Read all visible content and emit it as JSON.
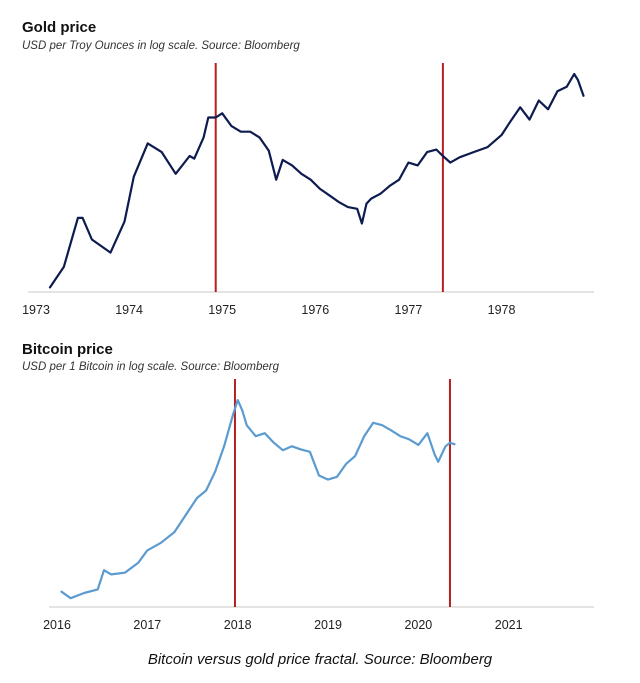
{
  "caption": "Bitcoin versus gold price fractal. Source: Bloomberg",
  "colors": {
    "gold_line": "#0d1b4f",
    "bitcoin_line": "#5b9bd0",
    "marker_line": "#b42020",
    "axis": "#c8c8c8"
  },
  "chart_data": [
    {
      "type": "line",
      "title": "Gold price",
      "subtitle": "USD per Troy Ounces in log scale. Source: Bloomberg",
      "xlabel": "",
      "ylabel": "",
      "y_scale": "log",
      "xlim": [
        1973.0,
        1978.95
      ],
      "ylim": [
        62,
        220
      ],
      "grid": false,
      "x_ticks": [
        "1973",
        "1974",
        "1975",
        "1976",
        "1977",
        "1978"
      ],
      "x_tick_values": [
        1973,
        1974,
        1975,
        1976,
        1977,
        1978
      ],
      "vertical_markers": [
        1974.93,
        1977.37
      ],
      "series": [
        {
          "name": "Gold price",
          "x": [
            1973.15,
            1973.3,
            1973.45,
            1973.5,
            1973.6,
            1973.8,
            1973.95,
            1974.05,
            1974.2,
            1974.35,
            1974.5,
            1974.65,
            1974.7,
            1974.8,
            1974.85,
            1974.93,
            1975.0,
            1975.1,
            1975.2,
            1975.3,
            1975.4,
            1975.5,
            1975.58,
            1975.65,
            1975.75,
            1975.85,
            1975.95,
            1976.05,
            1976.15,
            1976.25,
            1976.35,
            1976.45,
            1976.5,
            1976.55,
            1976.6,
            1976.7,
            1976.8,
            1976.9,
            1977.0,
            1977.1,
            1977.2,
            1977.3,
            1977.37,
            1977.45,
            1977.55,
            1977.7,
            1977.85,
            1978.0,
            1978.1,
            1978.2,
            1978.3,
            1978.4,
            1978.5,
            1978.6,
            1978.7,
            1978.78,
            1978.82,
            1978.88
          ],
          "y": [
            64,
            72,
            95,
            95,
            84,
            78,
            93,
            120,
            145,
            138,
            122,
            135,
            133,
            150,
            168,
            168,
            172,
            160,
            155,
            155,
            150,
            139,
            118,
            132,
            128,
            122,
            118,
            112,
            108,
            104,
            101,
            100,
            92,
            103,
            106,
            109,
            114,
            118,
            130,
            128,
            138,
            140,
            135,
            130,
            134,
            138,
            142,
            152,
            165,
            178,
            166,
            185,
            176,
            195,
            200,
            215,
            208,
            190
          ]
        }
      ]
    },
    {
      "type": "line",
      "title": "Bitcoin price",
      "subtitle": "USD per 1 Bitcoin in log scale. Source: Bloomberg",
      "xlabel": "",
      "ylabel": "",
      "y_scale": "log",
      "xlim": [
        2016.0,
        2021.9
      ],
      "ylim": [
        250,
        25000
      ],
      "grid": false,
      "x_ticks": [
        "2016",
        "2017",
        "2018",
        "2019",
        "2020",
        "2021"
      ],
      "x_tick_values": [
        2016,
        2017,
        2018,
        2019,
        2020,
        2021
      ],
      "vertical_markers": [
        2017.97,
        2020.35
      ],
      "series": [
        {
          "name": "Bitcoin price",
          "x": [
            2016.05,
            2016.15,
            2016.3,
            2016.45,
            2016.52,
            2016.6,
            2016.75,
            2016.9,
            2017.0,
            2017.15,
            2017.3,
            2017.45,
            2017.55,
            2017.65,
            2017.75,
            2017.85,
            2017.95,
            2018.0,
            2018.05,
            2018.1,
            2018.2,
            2018.3,
            2018.4,
            2018.5,
            2018.6,
            2018.7,
            2018.8,
            2018.9,
            2019.0,
            2019.1,
            2019.2,
            2019.3,
            2019.4,
            2019.5,
            2019.6,
            2019.7,
            2019.8,
            2019.9,
            2020.0,
            2020.1,
            2020.18,
            2020.22,
            2020.3,
            2020.35,
            2020.4
          ],
          "y": [
            430,
            380,
            420,
            450,
            650,
            600,
            620,
            750,
            950,
            1100,
            1350,
            2000,
            2600,
            3000,
            4300,
            7000,
            13000,
            17000,
            14000,
            10500,
            8500,
            9000,
            7500,
            6500,
            7000,
            6600,
            6300,
            4000,
            3700,
            3900,
            5000,
            5800,
            8500,
            11000,
            10500,
            9500,
            8500,
            8000,
            7200,
            9000,
            6000,
            5200,
            7000,
            7500,
            7300
          ]
        }
      ]
    }
  ]
}
